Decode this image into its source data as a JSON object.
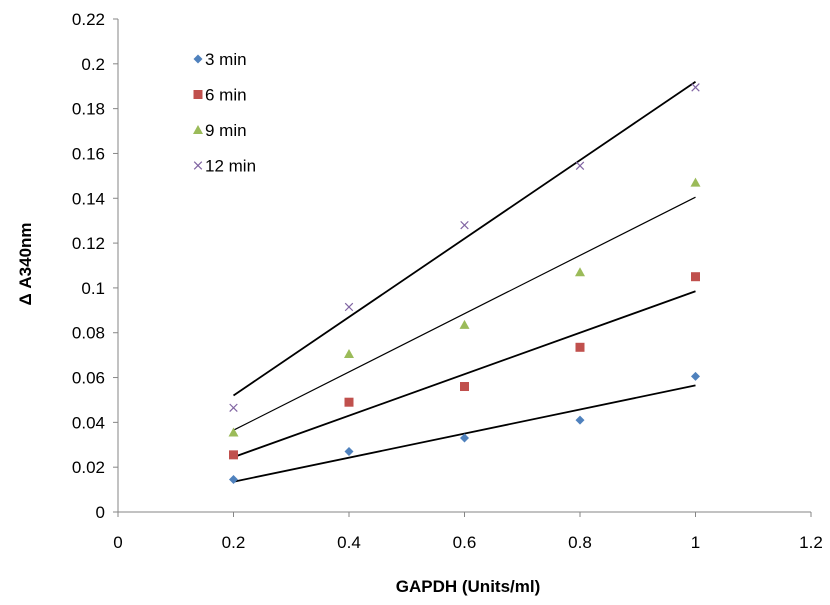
{
  "chart_data": {
    "type": "scatter",
    "title": "",
    "xlabel": "GAPDH (Units/ml)",
    "ylabel": "Δ A340nm",
    "xlim": [
      0,
      1.2
    ],
    "ylim": [
      0,
      0.22
    ],
    "x_ticks": [
      "0",
      "0.2",
      "0.4",
      "0.6",
      "0.8",
      "1",
      "1.2"
    ],
    "y_ticks": [
      "0",
      "0.02",
      "0.04",
      "0.06",
      "0.08",
      "0.1",
      "0.12",
      "0.14",
      "0.16",
      "0.18",
      "0.2",
      "0.22"
    ],
    "grid": false,
    "legend_position": "top-left",
    "trendlines": "linear",
    "series": [
      {
        "name": "3 min",
        "marker": "diamond",
        "color": "#4f81bd",
        "x": [
          0.2,
          0.4,
          0.6,
          0.8,
          1.0
        ],
        "y": [
          0.0145,
          0.027,
          0.033,
          0.041,
          0.0605
        ],
        "trend": [
          [
            0.2,
            0.0135
          ],
          [
            1.0,
            0.0565
          ]
        ]
      },
      {
        "name": "6 min",
        "marker": "square",
        "color": "#c0504d",
        "x": [
          0.2,
          0.4,
          0.6,
          0.8,
          1.0
        ],
        "y": [
          0.0255,
          0.049,
          0.056,
          0.0735,
          0.105
        ],
        "trend": [
          [
            0.2,
            0.0245
          ],
          [
            1.0,
            0.0985
          ]
        ]
      },
      {
        "name": "9 min",
        "marker": "triangle",
        "color": "#9bbb59",
        "x": [
          0.2,
          0.4,
          0.6,
          0.8,
          1.0
        ],
        "y": [
          0.0355,
          0.0705,
          0.0835,
          0.107,
          0.147
        ],
        "trend": [
          [
            0.2,
            0.0365
          ],
          [
            1.0,
            0.1405
          ]
        ]
      },
      {
        "name": "12 min",
        "marker": "x",
        "color": "#8064a2",
        "x": [
          0.2,
          0.4,
          0.6,
          0.8,
          1.0
        ],
        "y": [
          0.0465,
          0.0915,
          0.128,
          0.1545,
          0.1895
        ],
        "trend": [
          [
            0.2,
            0.052
          ],
          [
            1.0,
            0.192
          ]
        ]
      }
    ]
  }
}
